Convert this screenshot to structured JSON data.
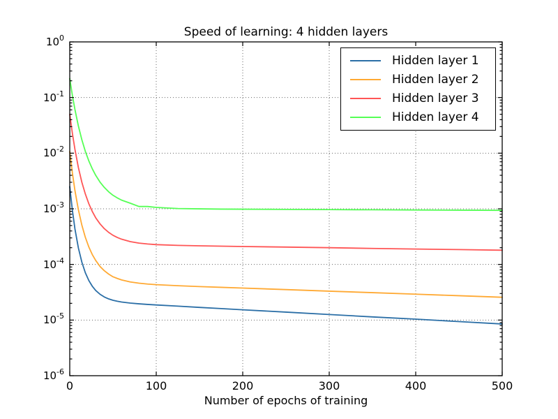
{
  "figure": {
    "title": "Speed of learning: 4 hidden layers",
    "xlabel": "Number of epochs of training",
    "background": "#ffffff",
    "grid_color": "#000000",
    "spine_color": "#000000"
  },
  "axes": {
    "x_ticks": [
      "0",
      "100",
      "200",
      "300",
      "400",
      "500"
    ],
    "y_ticks": [
      {
        "base": "10",
        "exp": "0"
      },
      {
        "base": "10",
        "exp": "-1"
      },
      {
        "base": "10",
        "exp": "-2"
      },
      {
        "base": "10",
        "exp": "-3"
      },
      {
        "base": "10",
        "exp": "-4"
      },
      {
        "base": "10",
        "exp": "-5"
      },
      {
        "base": "10",
        "exp": "-6"
      }
    ]
  },
  "legend": {
    "entries": [
      {
        "label": "Hidden layer 1",
        "color": "#2A6EA6"
      },
      {
        "label": "Hidden layer 2",
        "color": "#FFA933"
      },
      {
        "label": "Hidden layer 3",
        "color": "#FF5555"
      },
      {
        "label": "Hidden layer 4",
        "color": "#55FF55"
      }
    ]
  },
  "chart_data": {
    "type": "line",
    "title": "Speed of learning: 4 hidden layers",
    "xlabel": "Number of epochs of training",
    "ylabel": "",
    "y_scale": "log",
    "xlim": [
      0,
      500
    ],
    "ylim": [
      1e-06,
      1
    ],
    "x_major_ticks": [
      0,
      100,
      200,
      300,
      400,
      500
    ],
    "y_major_ticks": [
      1,
      0.1,
      0.01,
      0.001,
      0.0001,
      1e-05,
      1e-06
    ],
    "grid": true,
    "grid_style": "dotted",
    "legend_position": "upper right",
    "x": [
      0,
      3,
      6,
      10,
      14,
      18,
      22,
      26,
      30,
      35,
      40,
      45,
      50,
      55,
      60,
      70,
      80,
      90,
      100,
      125,
      150,
      175,
      200,
      250,
      300,
      350,
      400,
      450,
      500
    ],
    "series": [
      {
        "name": "Hidden layer 1",
        "color": "#2A6EA6",
        "values": [
          0.00251,
          0.00095,
          0.000435,
          0.000197,
          0.00011,
          7.1e-05,
          5.16e-05,
          4.07e-05,
          3.41e-05,
          2.91e-05,
          2.6e-05,
          2.4e-05,
          2.27e-05,
          2.18e-05,
          2.11e-05,
          2.02e-05,
          1.96e-05,
          1.91e-05,
          1.87e-05,
          1.78e-05,
          1.69e-05,
          1.61e-05,
          1.53e-05,
          1.39e-05,
          1.26e-05,
          1.14e-05,
          1.04e-05,
          9.4e-06,
          8.5e-06
        ]
      },
      {
        "name": "Hidden layer 2",
        "color": "#FFA933",
        "values": [
          0.0107,
          0.00446,
          0.00213,
          0.00096,
          0.000508,
          0.000308,
          0.000207,
          0.000151,
          0.000118,
          9.2e-05,
          7.7e-05,
          6.7e-05,
          6e-05,
          5.6e-05,
          5.26e-05,
          4.84e-05,
          4.6e-05,
          4.44e-05,
          4.33e-05,
          4.15e-05,
          4e-05,
          3.88e-05,
          3.76e-05,
          3.53e-05,
          3.31e-05,
          3.11e-05,
          2.92e-05,
          2.74e-05,
          2.57e-05
        ]
      },
      {
        "name": "Hidden layer 3",
        "color": "#FF5555",
        "values": [
          0.05,
          0.0229,
          0.0117,
          0.0055,
          0.003,
          0.00185,
          0.00124,
          0.0009,
          0.00069,
          0.000536,
          0.000439,
          0.000377,
          0.000334,
          0.000305,
          0.000284,
          0.000257,
          0.000242,
          0.000233,
          0.000227,
          0.00022,
          0.000216,
          0.000213,
          0.00021,
          0.000205,
          0.0002,
          0.000194,
          0.000189,
          0.000185,
          0.00018
        ]
      },
      {
        "name": "Hidden layer 4",
        "color": "#55FF55",
        "values": [
          0.219,
          0.11,
          0.061,
          0.0307,
          0.0174,
          0.0108,
          0.0073,
          0.00526,
          0.004,
          0.00302,
          0.00242,
          0.00202,
          0.00175,
          0.00157,
          0.00143,
          0.00126,
          0.0011,
          0.0011,
          0.00106,
          0.00101,
          0.000998,
          0.000988,
          0.000984,
          0.000976,
          0.000968,
          0.00096,
          0.000953,
          0.000945,
          0.000938
        ]
      }
    ]
  }
}
